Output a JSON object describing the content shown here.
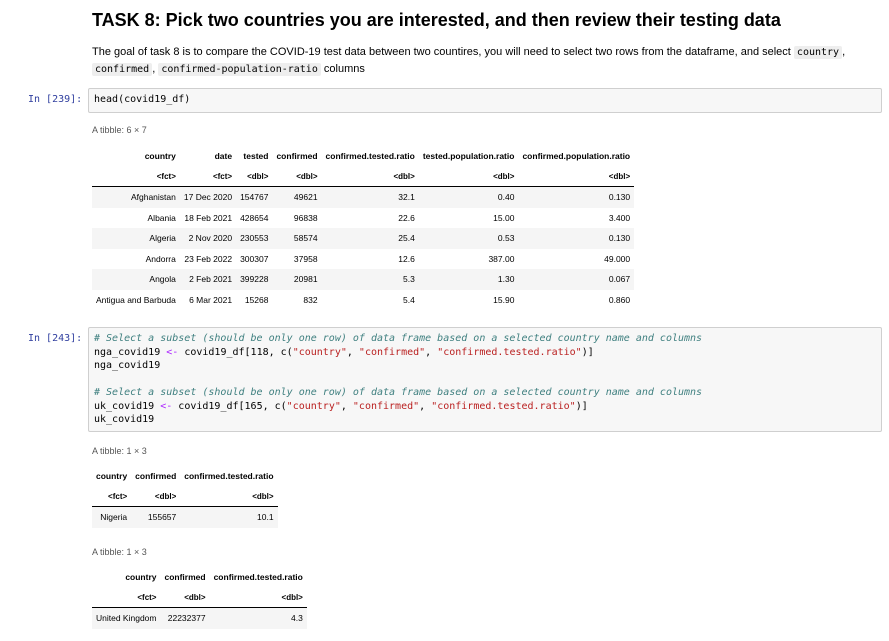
{
  "markdown": {
    "title": "TASK 8: Pick two countries you are interested, and then review their testing data",
    "para_text": "The goal of task 8 is to compare the COVID-19 test data between two countires, you will need to select two rows from the dataframe, and select",
    "code1": "country",
    "code2": "confirmed",
    "code3": "confirmed-population-ratio",
    "para_end": "columns"
  },
  "cell1": {
    "prompt": "In [239]:",
    "code": "head(covid19_df)",
    "caption": "A tibble: 6 × 7",
    "headers": [
      "country",
      "date",
      "tested",
      "confirmed",
      "confirmed.tested.ratio",
      "tested.population.ratio",
      "confirmed.population.ratio"
    ],
    "types": [
      "<fct>",
      "<fct>",
      "<dbl>",
      "<dbl>",
      "<dbl>",
      "<dbl>",
      "<dbl>"
    ],
    "rows": [
      [
        "Afghanistan",
        "17 Dec 2020",
        "154767",
        "49621",
        "32.1",
        "0.40",
        "0.130"
      ],
      [
        "Albania",
        "18 Feb 2021",
        "428654",
        "96838",
        "22.6",
        "15.00",
        "3.400"
      ],
      [
        "Algeria",
        "2 Nov 2020",
        "230553",
        "58574",
        "25.4",
        "0.53",
        "0.130"
      ],
      [
        "Andorra",
        "23 Feb 2022",
        "300307",
        "37958",
        "12.6",
        "387.00",
        "49.000"
      ],
      [
        "Angola",
        "2 Feb 2021",
        "399228",
        "20981",
        "5.3",
        "1.30",
        "0.067"
      ],
      [
        "Antigua and Barbuda",
        "6 Mar 2021",
        "15268",
        "832",
        "5.4",
        "15.90",
        "0.860"
      ]
    ]
  },
  "cell2": {
    "prompt": "In [243]:",
    "comment1": "# Select a subset (should be only one row) of data frame based on a selected country name and columns",
    "line2a": "nga_covid19 ",
    "line2op": "<-",
    "line2b": " covid19_df[118, c(",
    "s1": "\"country\"",
    "s2": "\"confirmed\"",
    "s3": "\"confirmed.tested.ratio\"",
    "line2end": ")]",
    "line3": "nga_covid19",
    "comment2": "# Select a subset (should be only one row) of data frame based on a selected country name and columns",
    "line5a": "uk_covid19 ",
    "line5op": "<-",
    "line5b": " covid19_df[165, c(",
    "line5end": ")]",
    "line6": "uk_covid19",
    "sep": ", ",
    "t1": {
      "caption": "A tibble: 1 × 3",
      "headers": [
        "country",
        "confirmed",
        "confirmed.tested.ratio"
      ],
      "types": [
        "<fct>",
        "<dbl>",
        "<dbl>"
      ],
      "rows": [
        [
          "Nigeria",
          "155657",
          "10.1"
        ]
      ]
    },
    "t2": {
      "caption": "A tibble: 1 × 3",
      "headers": [
        "country",
        "confirmed",
        "confirmed.tested.ratio"
      ],
      "types": [
        "<fct>",
        "<dbl>",
        "<dbl>"
      ],
      "rows": [
        [
          "United Kingdom",
          "22232377",
          "4.3"
        ]
      ]
    }
  }
}
